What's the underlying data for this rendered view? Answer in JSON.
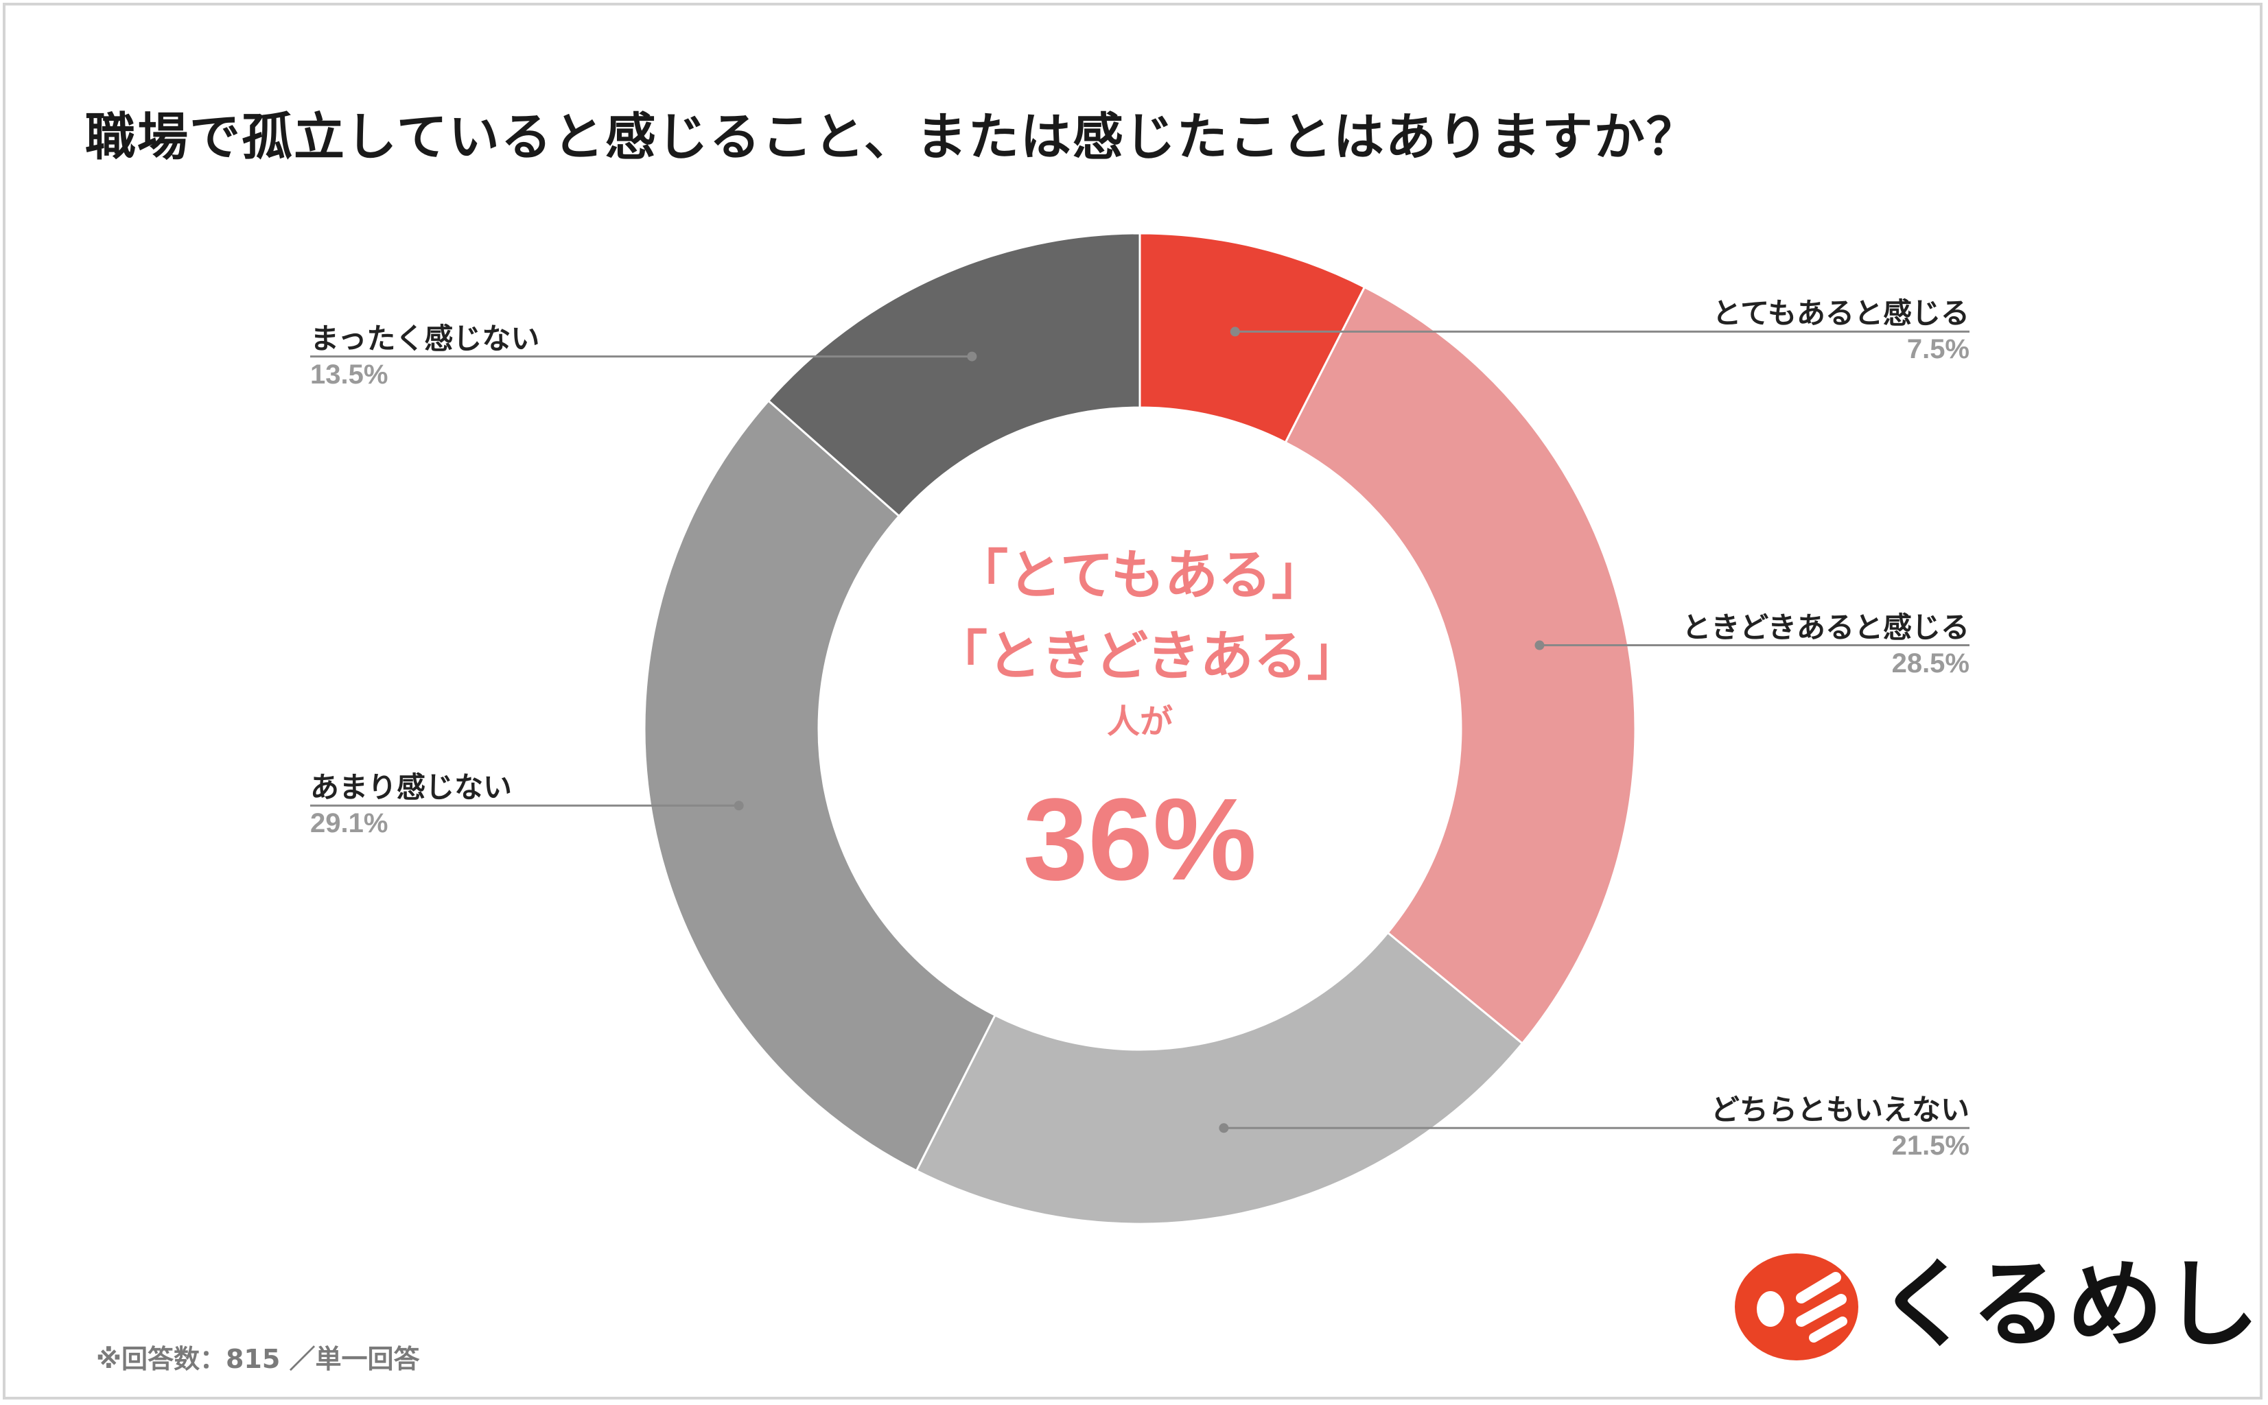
{
  "title": "職場で孤立していると感じること、または感じたことはありますか？",
  "chart_data": {
    "type": "pie",
    "variant": "donut",
    "title": "職場で孤立していると感じること、または感じたことはありますか？",
    "slices": [
      {
        "label": "とてもあると感じる",
        "value": 7.5,
        "display": "7.5%",
        "color": "#ea4335"
      },
      {
        "label": "ときどきあると感じる",
        "value": 28.5,
        "display": "28.5%",
        "color": "#ea9999"
      },
      {
        "label": "どちらともいえない",
        "value": 21.5,
        "display": "21.5%",
        "color": "#b7b7b7"
      },
      {
        "label": "あまり感じない",
        "value": 29.1,
        "display": "29.1%",
        "color": "#999999"
      },
      {
        "label": "まったく感じない",
        "value": 13.5,
        "display": "13.5%",
        "color": "#666666"
      }
    ],
    "start": "top",
    "direction": "clockwise",
    "legend": "leader-line labels beside ring"
  },
  "center": {
    "line1": "「とてもある」",
    "line2": "「ときどきある」",
    "line3": "人が",
    "value": "36%",
    "color": "#f17f80"
  },
  "footnote": "※回答数：815 ／単一回答",
  "logo": {
    "text": "くるめし",
    "icon": "kurumeshi-logo-icon",
    "color": "#ea4325"
  }
}
